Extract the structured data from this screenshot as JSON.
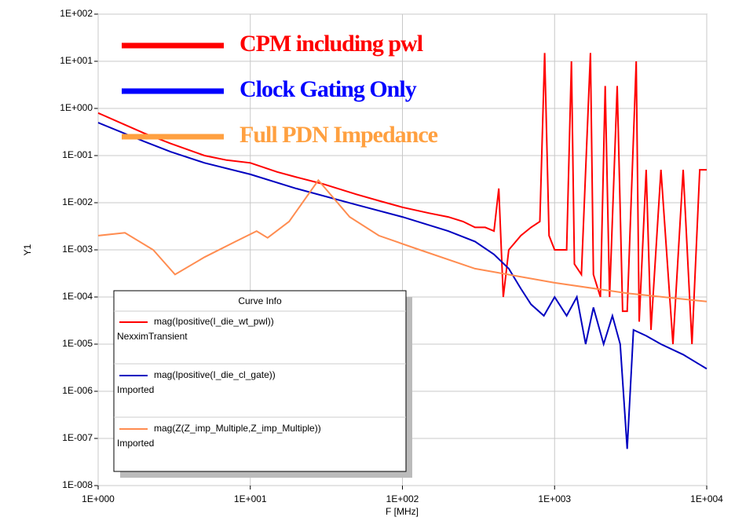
{
  "chart_data": {
    "type": "line",
    "x_label": "F [MHz]",
    "y_label": "Y1",
    "xlog": true,
    "ylog": true,
    "grid": true,
    "xlim": [
      1,
      10000
    ],
    "xticks": [
      {
        "value": 1,
        "label": "1E+000"
      },
      {
        "value": 10,
        "label": "1E+001"
      },
      {
        "value": 100,
        "label": "1E+002"
      },
      {
        "value": 1000,
        "label": "1E+003"
      },
      {
        "value": 10000,
        "label": "1E+004"
      }
    ],
    "ylim": [
      1e-08,
      100
    ],
    "yticks": [
      {
        "value": 100,
        "label": "1E+002"
      },
      {
        "value": 10,
        "label": "1E+001"
      },
      {
        "value": 1,
        "label": "1E+000"
      },
      {
        "value": 0.1,
        "label": "1E-001"
      },
      {
        "value": 0.01,
        "label": "1E-002"
      },
      {
        "value": 0.001,
        "label": "1E-003"
      },
      {
        "value": 0.0001,
        "label": "1E-004"
      },
      {
        "value": 1e-05,
        "label": "1E-005"
      },
      {
        "value": 1e-06,
        "label": "1E-006"
      },
      {
        "value": 1e-07,
        "label": "1E-007"
      },
      {
        "value": 1e-08,
        "label": "1E-008"
      }
    ],
    "legend_title": "Curve Info",
    "series": [
      {
        "name": "mag(Ipositive(I_die_wt_pwl))",
        "source": "NexximTransient",
        "color": "#ff0000",
        "x": [
          1,
          1.5,
          2,
          3,
          5,
          7,
          10,
          15,
          20,
          30,
          50,
          70,
          100,
          150,
          200,
          250,
          300,
          350,
          400,
          430,
          460,
          500,
          600,
          700,
          800,
          860,
          920,
          1000,
          1200,
          1290,
          1350,
          1500,
          1720,
          1800,
          2000,
          2150,
          2300,
          2580,
          2800,
          3000,
          3440,
          3600,
          4000,
          4300,
          5000,
          6000,
          7000,
          8000,
          9000,
          10000
        ],
        "values": [
          0.8,
          0.45,
          0.3,
          0.18,
          0.1,
          0.08,
          0.07,
          0.045,
          0.035,
          0.025,
          0.015,
          0.011,
          0.008,
          0.006,
          0.005,
          0.004,
          0.003,
          0.003,
          0.0025,
          0.02,
          0.0001,
          0.001,
          0.002,
          0.003,
          0.004,
          15,
          0.002,
          0.001,
          0.001,
          10,
          0.0005,
          0.0003,
          15,
          0.0003,
          0.0001,
          3,
          0.0001,
          3,
          5e-05,
          5e-05,
          10,
          3e-05,
          0.05,
          2e-05,
          0.05,
          1e-05,
          0.05,
          1e-05,
          0.05,
          0.05
        ]
      },
      {
        "name": "mag(Ipositive(I_die_cl_gate))",
        "source": "Imported",
        "color": "#0000c0",
        "x": [
          1,
          2,
          3,
          5,
          10,
          20,
          50,
          100,
          200,
          300,
          400,
          500,
          600,
          700,
          850,
          1000,
          1200,
          1400,
          1600,
          1800,
          2100,
          2400,
          2700,
          3000,
          3300,
          4000,
          5000,
          7000,
          10000
        ],
        "values": [
          0.5,
          0.2,
          0.12,
          0.07,
          0.04,
          0.02,
          0.009,
          0.005,
          0.0025,
          0.0015,
          0.0008,
          0.0004,
          0.00015,
          7e-05,
          4e-05,
          0.0001,
          4e-05,
          0.0001,
          1e-05,
          6e-05,
          1e-05,
          4e-05,
          1e-05,
          6e-08,
          2e-05,
          1.5e-05,
          1e-05,
          6e-06,
          3e-06
        ]
      },
      {
        "name": "mag(Z(Z_imp_Multiple,Z_imp_Multiple))",
        "source": "Imported",
        "color": "#ff8c50",
        "x": [
          1,
          1.5,
          2.3,
          3.2,
          5,
          8,
          11,
          13,
          18,
          28,
          45,
          70,
          130,
          300,
          1000,
          3000,
          10000
        ],
        "values": [
          0.002,
          0.0023,
          0.001,
          0.0003,
          0.0007,
          0.0015,
          0.0025,
          0.0018,
          0.004,
          0.03,
          0.005,
          0.002,
          0.001,
          0.0004,
          0.0002,
          0.00012,
          8e-05
        ]
      }
    ],
    "annotations": [
      {
        "text": "CPM including  pwl",
        "color": "#ff0000"
      },
      {
        "text": "Clock Gating Only",
        "color": "#0000ff"
      },
      {
        "text": "Full PDN Impedance",
        "color": "#ffa040"
      }
    ]
  }
}
